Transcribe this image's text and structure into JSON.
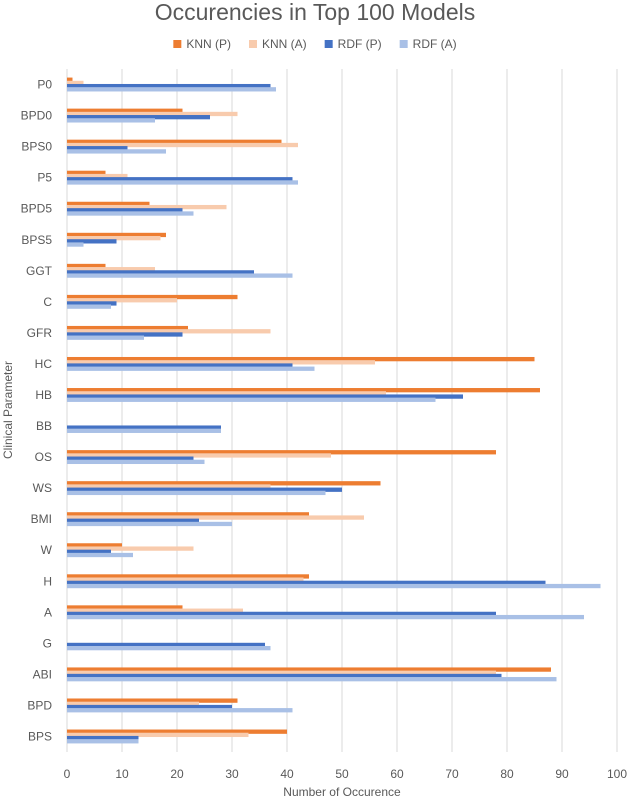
{
  "chart_data": {
    "type": "bar",
    "orientation": "horizontal",
    "title": "Occurencies in Top 100 Models",
    "xlabel": "Number of Occurence",
    "ylabel": "Clinical Parameter",
    "xlim": [
      0,
      100
    ],
    "x_ticks": [
      0,
      10,
      20,
      30,
      40,
      50,
      60,
      70,
      80,
      90,
      100
    ],
    "grid": true,
    "legend_position": "top",
    "categories": [
      "P0",
      "BPD0",
      "BPS0",
      "P5",
      "BPD5",
      "BPS5",
      "GGT",
      "C",
      "GFR",
      "HC",
      "HB",
      "BB",
      "OS",
      "WS",
      "BMI",
      "W",
      "H",
      "A",
      "G",
      "ABI",
      "BPD",
      "BPS"
    ],
    "series": [
      {
        "name": "KNN (P)",
        "color": "#ed7d31",
        "values": [
          1,
          21,
          39,
          7,
          15,
          18,
          7,
          31,
          22,
          85,
          86,
          0,
          78,
          57,
          44,
          10,
          44,
          21,
          0,
          88,
          31,
          40
        ]
      },
      {
        "name": "KNN (A)",
        "color": "#f8cbad",
        "values": [
          3,
          31,
          42,
          11,
          29,
          17,
          16,
          20,
          37,
          56,
          58,
          0,
          48,
          37,
          54,
          23,
          43,
          32,
          0,
          78,
          24,
          33
        ]
      },
      {
        "name": "RDF (P)",
        "color": "#4472c4",
        "values": [
          37,
          26,
          11,
          41,
          21,
          9,
          34,
          9,
          21,
          41,
          72,
          28,
          23,
          50,
          24,
          8,
          87,
          78,
          36,
          79,
          30,
          13
        ]
      },
      {
        "name": "RDF (A)",
        "color": "#a9c0e6",
        "values": [
          38,
          16,
          18,
          42,
          23,
          3,
          41,
          8,
          14,
          45,
          67,
          28,
          25,
          47,
          30,
          12,
          97,
          94,
          37,
          89,
          41,
          13
        ]
      }
    ]
  }
}
